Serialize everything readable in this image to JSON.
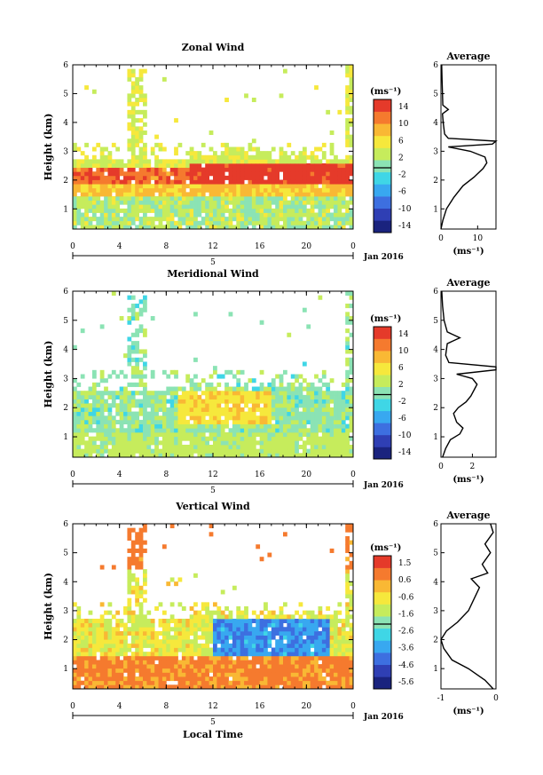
{
  "chart_data": [
    {
      "type": "heatmap",
      "title": "Zonal Wind",
      "ylabel": "Height (km)",
      "x_ticks": [
        "0",
        "4",
        "8",
        "12",
        "16",
        "20",
        "0"
      ],
      "xlim": [
        0,
        24
      ],
      "ylim": [
        0.3,
        6
      ],
      "y_ticks": [
        "1",
        "2",
        "3",
        "4",
        "5",
        "6"
      ],
      "date_marker": "5",
      "date_label": "Jan 2016",
      "colorbar": {
        "unit": "(ms⁻¹)",
        "ticks": [
          "14",
          "10",
          "6",
          "2",
          "-2",
          "-6",
          "-10",
          "-14"
        ],
        "range": [
          -16,
          16
        ]
      },
      "average": {
        "title": "Average",
        "xlim": [
          0,
          15
        ],
        "x_ticks": [
          "0",
          "10"
        ],
        "xlabel": "(ms⁻¹)",
        "profile": [
          [
            0,
            0.3
          ],
          [
            0.5,
            0.6
          ],
          [
            1.5,
            1.0
          ],
          [
            3.5,
            1.4
          ],
          [
            6,
            1.8
          ],
          [
            9,
            2.1
          ],
          [
            11.5,
            2.4
          ],
          [
            12.5,
            2.6
          ],
          [
            12,
            2.8
          ],
          [
            8,
            3.0
          ],
          [
            2,
            3.15
          ],
          [
            14,
            3.25
          ],
          [
            15,
            3.35
          ],
          [
            2,
            3.45
          ],
          [
            1,
            3.6
          ],
          [
            0.6,
            4.0
          ],
          [
            0.4,
            4.3
          ],
          [
            2,
            4.45
          ],
          [
            0.5,
            4.6
          ],
          [
            0.4,
            5.0
          ],
          [
            0.3,
            5.5
          ],
          [
            0.2,
            6.0
          ]
        ]
      }
    },
    {
      "type": "heatmap",
      "title": "Meridional Wind",
      "ylabel": "Height (km)",
      "x_ticks": [
        "0",
        "4",
        "8",
        "12",
        "16",
        "20",
        "0"
      ],
      "xlim": [
        0,
        24
      ],
      "ylim": [
        0.3,
        6
      ],
      "y_ticks": [
        "1",
        "2",
        "3",
        "4",
        "5",
        "6"
      ],
      "date_marker": "5",
      "date_label": "Jan 2016",
      "colorbar": {
        "unit": "(ms⁻¹)",
        "ticks": [
          "14",
          "10",
          "6",
          "2",
          "-2",
          "-6",
          "-10",
          "-14"
        ],
        "range": [
          -16,
          16
        ]
      },
      "average": {
        "title": "Average",
        "xlim": [
          0,
          3.5
        ],
        "x_ticks": [
          "0",
          "2"
        ],
        "xlabel": "(ms⁻¹)",
        "profile": [
          [
            0.1,
            0.3
          ],
          [
            0.3,
            0.6
          ],
          [
            0.6,
            0.9
          ],
          [
            1.2,
            1.1
          ],
          [
            1.4,
            1.3
          ],
          [
            1.0,
            1.5
          ],
          [
            0.8,
            1.8
          ],
          [
            1.1,
            2.0
          ],
          [
            1.6,
            2.2
          ],
          [
            1.9,
            2.4
          ],
          [
            2.1,
            2.6
          ],
          [
            2.3,
            2.8
          ],
          [
            2.0,
            3.0
          ],
          [
            1.0,
            3.15
          ],
          [
            3.5,
            3.3
          ],
          [
            3.5,
            3.4
          ],
          [
            0.5,
            3.55
          ],
          [
            0.3,
            3.8
          ],
          [
            0.4,
            4.2
          ],
          [
            1.2,
            4.4
          ],
          [
            0.4,
            4.6
          ],
          [
            0.2,
            5.0
          ],
          [
            0.1,
            5.5
          ],
          [
            0.05,
            6.0
          ]
        ]
      }
    },
    {
      "type": "heatmap",
      "title": "Vertical Wind",
      "ylabel": "Height (km)",
      "xlabel": "Local Time",
      "x_ticks": [
        "0",
        "4",
        "8",
        "12",
        "16",
        "20",
        "0"
      ],
      "xlim": [
        0,
        24
      ],
      "ylim": [
        0.3,
        6
      ],
      "y_ticks": [
        "1",
        "2",
        "3",
        "4",
        "5",
        "6"
      ],
      "date_marker": "5",
      "date_label": "Jan 2016",
      "colorbar": {
        "unit": "(ms⁻¹)",
        "ticks": [
          "1.5",
          "0.6",
          "-0.6",
          "-1.6",
          "-2.6",
          "-3.6",
          "-4.6",
          "-5.6"
        ],
        "range": [
          -6,
          2
        ]
      },
      "average": {
        "title": "Average",
        "xlim": [
          -1,
          0
        ],
        "x_ticks": [
          "-1",
          "0"
        ],
        "xlabel": "(ms⁻¹)",
        "profile": [
          [
            -0.05,
            0.3
          ],
          [
            -0.2,
            0.6
          ],
          [
            -0.5,
            1.0
          ],
          [
            -0.8,
            1.3
          ],
          [
            -0.95,
            1.7
          ],
          [
            -1.0,
            2.0
          ],
          [
            -0.9,
            2.3
          ],
          [
            -0.7,
            2.6
          ],
          [
            -0.5,
            3.0
          ],
          [
            -0.4,
            3.4
          ],
          [
            -0.3,
            3.8
          ],
          [
            -0.45,
            4.1
          ],
          [
            -0.15,
            4.3
          ],
          [
            -0.25,
            4.6
          ],
          [
            -0.1,
            5.0
          ],
          [
            -0.2,
            5.3
          ],
          [
            -0.05,
            5.7
          ],
          [
            -0.1,
            6.0
          ]
        ]
      }
    }
  ]
}
